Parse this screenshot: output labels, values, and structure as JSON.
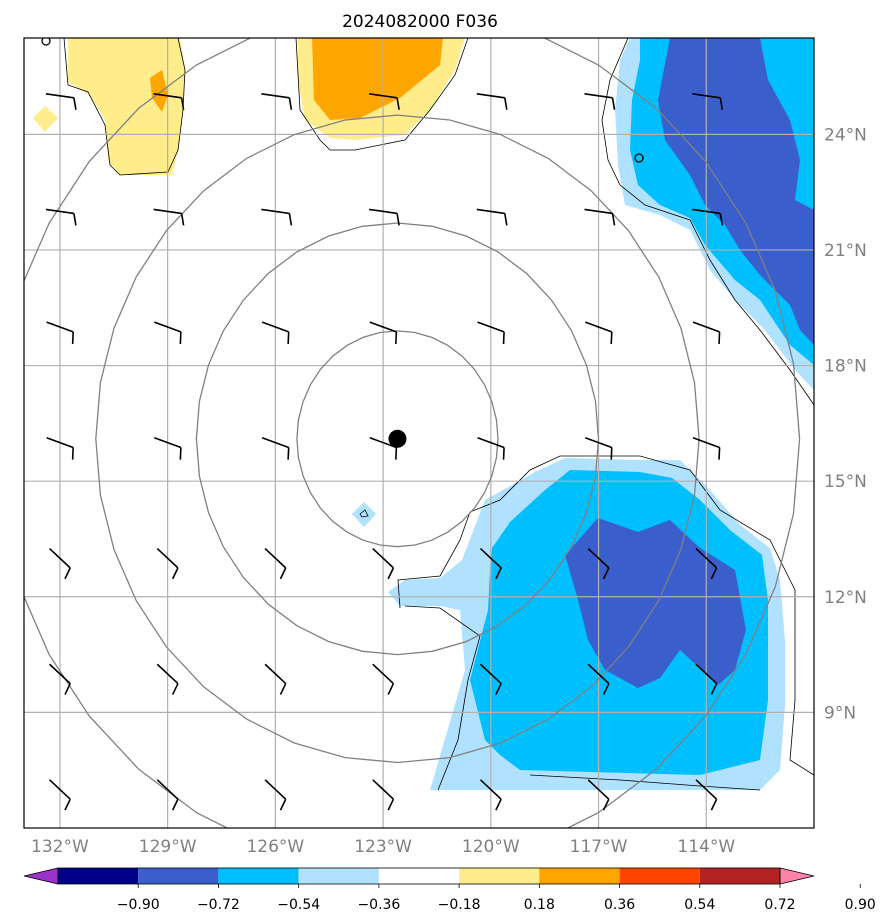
{
  "title": "2024082000 F036",
  "map": {
    "lon_range": [
      -133,
      -111
    ],
    "lat_range": [
      6,
      26.5
    ],
    "lat_ticks": [
      {
        "value": 24,
        "label": "24°N"
      },
      {
        "value": 21,
        "label": "21°N"
      },
      {
        "value": 18,
        "label": "18°N"
      },
      {
        "value": 15,
        "label": "15°N"
      },
      {
        "value": 12,
        "label": "12°N"
      },
      {
        "value": 9,
        "label": "9°N"
      }
    ],
    "lon_ticks": [
      {
        "value": -132,
        "label": "132°W"
      },
      {
        "value": -129,
        "label": "129°W"
      },
      {
        "value": -126,
        "label": "126°W"
      },
      {
        "value": -123,
        "label": "123°W"
      },
      {
        "value": -120,
        "label": "120°W"
      },
      {
        "value": -117,
        "label": "117°W"
      },
      {
        "value": -114,
        "label": "114°W"
      }
    ],
    "storm_center": {
      "lon": -122.6,
      "lat": 16.1
    },
    "range_rings_deg": [
      2.8,
      5.6,
      8.4,
      11.2
    ],
    "gridline_color": "#b0b0b0",
    "ring_color": "#808080"
  },
  "colorbar": {
    "colors": [
      "#9932cc",
      "#00008b",
      "#3a5fcd",
      "#00bfff",
      "#b0e2ff",
      "#ffffff",
      "#ffec8b",
      "#ffa500",
      "#ff4500",
      "#b22222",
      "#ff82ab"
    ],
    "tick_labels": [
      "−0.90",
      "−0.72",
      "−0.54",
      "−0.36",
      "−0.18",
      "0.18",
      "0.36",
      "0.54",
      "0.72",
      "0.90"
    ]
  },
  "fill_colors": {
    "light_blue": "#b0e2ff",
    "blue": "#00bfff",
    "dark_blue": "#3a5fcd",
    "light_yellow": "#ffec8b",
    "orange": "#ffa500"
  }
}
